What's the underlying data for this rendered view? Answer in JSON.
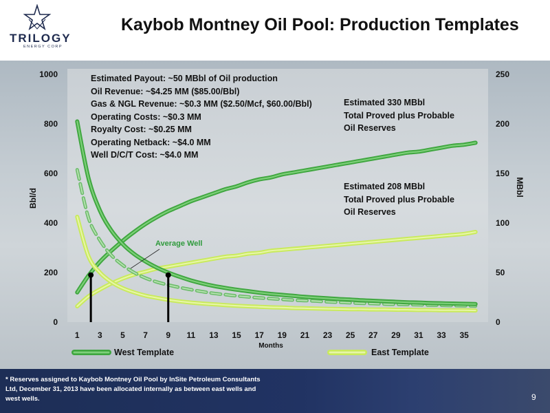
{
  "header": {
    "title": "Kaybob Montney Oil Pool: Production Templates",
    "logo_name": "TRILOGY",
    "logo_sub": "ENERGY CORP"
  },
  "annotations": {
    "economics": [
      "Estimated Payout: ~50 MBbl of Oil production",
      "Oil Revenue: ~$4.25 MM ($85.00/Bbl)",
      "Gas & NGL Revenue: ~$0.3 MM ($2.50/Mcf, $60.00/Bbl)",
      "Operating Costs: ~$0.3 MM",
      "Royalty Cost: ~$0.25 MM",
      "Operating Netback: ~$4.0 MM",
      "Well D/C/T Cost: ~$4.0 MM"
    ],
    "west_reserves": [
      "Estimated 330 MBbl",
      "Total Proved plus Probable",
      "Oil Reserves"
    ],
    "east_reserves": [
      "Estimated 208 MBbl",
      "Total Proved plus Probable",
      "Oil Reserves"
    ],
    "average_well": "Average Well"
  },
  "footer": {
    "note": "* Reserves assigned to Kaybob Montney Oil Pool by InSite Petroleum Consultants Ltd, December 31, 2013 have been allocated internally as between east wells and west wells.",
    "page": "9"
  },
  "colors": {
    "west": "#3fa63f",
    "west_light": "#7ed07a",
    "east": "#c9ea5c",
    "east_light": "#e7f6a6",
    "average": "#6cbc6a",
    "average_label": "#2f9a3c",
    "marker": "#000000"
  },
  "chart_data": {
    "type": "line",
    "xlabel": "Months",
    "ylabel_left": "Bbl/d",
    "ylabel_right": "MBbl",
    "x": [
      1,
      2,
      3,
      4,
      5,
      6,
      7,
      8,
      9,
      10,
      11,
      12,
      13,
      14,
      15,
      16,
      17,
      18,
      19,
      20,
      21,
      22,
      23,
      24,
      25,
      26,
      27,
      28,
      29,
      30,
      31,
      32,
      33,
      34,
      35,
      36
    ],
    "x_ticks": [
      1,
      3,
      5,
      7,
      9,
      11,
      13,
      15,
      17,
      19,
      21,
      23,
      25,
      27,
      29,
      31,
      33,
      35
    ],
    "xlim": [
      0.5,
      36.5
    ],
    "ylim_left": [
      0,
      1000
    ],
    "ylim_right": [
      0,
      250
    ],
    "y_ticks_left": [
      0,
      200,
      400,
      600,
      800,
      1000
    ],
    "y_ticks_right": [
      0,
      50,
      100,
      150,
      200,
      250
    ],
    "legend": [
      "West Template",
      "East Template"
    ],
    "legend_position": "bottom",
    "series": [
      {
        "name": "West Template",
        "axis": "left",
        "kind": "rate",
        "values": [
          810,
          580,
          450,
          370,
          315,
          275,
          245,
          220,
          200,
          183,
          168,
          156,
          146,
          138,
          131,
          125,
          119,
          114,
          110,
          106,
          102,
          99,
          96,
          93,
          91,
          88,
          86,
          84,
          82,
          80,
          79,
          77,
          76,
          75,
          74,
          73
        ]
      },
      {
        "name": "East Template",
        "axis": "left",
        "kind": "rate",
        "values": [
          425,
          265,
          200,
          162,
          137,
          120,
          107,
          98,
          90,
          84,
          79,
          75,
          72,
          69,
          66,
          64,
          62,
          60,
          59,
          57,
          56,
          55,
          54,
          53,
          52,
          52,
          51,
          51,
          50,
          50,
          49,
          49,
          48,
          48,
          48,
          47
        ]
      },
      {
        "name": "Average Well",
        "axis": "left",
        "kind": "rate",
        "values": [
          615,
          420,
          330,
          270,
          230,
          200,
          178,
          162,
          150,
          140,
          131,
          123,
          116,
          111,
          106,
          102,
          98,
          95,
          92,
          89,
          87,
          85,
          82,
          80,
          78,
          76,
          75,
          73,
          72,
          71,
          70,
          69,
          68,
          67,
          66,
          65
        ]
      },
      {
        "name": "West Template",
        "axis": "right",
        "kind": "cumulative",
        "values": [
          30,
          47,
          61,
          72,
          82,
          91,
          99,
          106,
          112,
          117,
          122,
          126,
          130,
          134,
          137,
          141,
          144,
          146,
          149,
          151,
          153,
          155,
          157,
          159,
          161,
          163,
          165,
          167,
          169,
          171,
          172,
          174,
          176,
          178,
          179,
          181
        ]
      },
      {
        "name": "East Template",
        "axis": "right",
        "kind": "cumulative",
        "values": [
          16,
          26,
          33,
          39,
          44,
          48,
          51,
          54,
          56,
          58,
          60,
          62,
          64,
          66,
          67,
          69,
          70,
          72,
          73,
          74,
          75,
          76,
          77,
          78,
          79,
          80,
          81,
          82,
          83,
          84,
          85,
          86,
          87,
          88,
          89,
          91
        ]
      }
    ],
    "markers": [
      {
        "x": 2.2,
        "y": 190
      },
      {
        "x": 9,
        "y": 190
      }
    ]
  }
}
